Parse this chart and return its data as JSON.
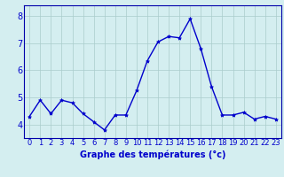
{
  "x": [
    0,
    1,
    2,
    3,
    4,
    5,
    6,
    7,
    8,
    9,
    10,
    11,
    12,
    13,
    14,
    15,
    16,
    17,
    18,
    19,
    20,
    21,
    22,
    23
  ],
  "y": [
    4.3,
    4.9,
    4.4,
    4.9,
    4.8,
    4.4,
    4.1,
    3.8,
    4.35,
    4.35,
    5.25,
    6.35,
    7.05,
    7.25,
    7.2,
    7.9,
    6.8,
    5.4,
    4.35,
    4.35,
    4.45,
    4.2,
    4.3,
    4.2
  ],
  "line_color": "#0000cc",
  "marker": "*",
  "marker_size": 3,
  "bg_color": "#d4eef0",
  "grid_color": "#aacccc",
  "xlabel": "Graphe des températures (°c)",
  "xlabel_color": "#0000cc",
  "xlabel_fontsize": 7,
  "tick_color": "#0000cc",
  "tick_fontsize": 6,
  "ytick_fontsize": 7,
  "ylim": [
    3.5,
    8.4
  ],
  "yticks": [
    4,
    5,
    6,
    7,
    8
  ],
  "xticks": [
    0,
    1,
    2,
    3,
    4,
    5,
    6,
    7,
    8,
    9,
    10,
    11,
    12,
    13,
    14,
    15,
    16,
    17,
    18,
    19,
    20,
    21,
    22,
    23
  ],
  "xlim": [
    -0.5,
    23.5
  ],
  "border_color": "#0000aa",
  "line_width": 1.0
}
